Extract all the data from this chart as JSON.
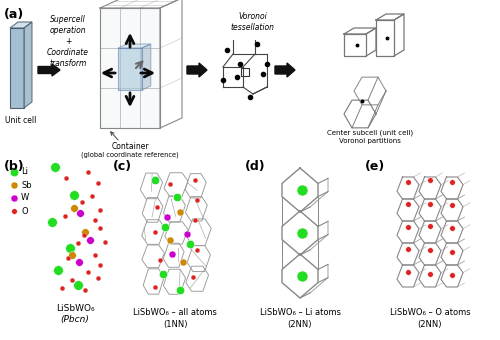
{
  "panel_a_label": "(a)",
  "panel_b_label": "(b)",
  "panel_c_label": "(c)",
  "panel_d_label": "(d)",
  "panel_e_label": "(e)",
  "unit_cell_text": "Unit cell",
  "supercell_text": "Supercell\noperation\n+\nCoordinate\ntransform",
  "voronoi_text": "Voronoi\ntessellation",
  "container_text": "Container\n(global coordinate reference)",
  "center_subcell_text": "Center subcell (unit cell)\nVoronoi partitions",
  "lisbwo6_label": "LiSbWO₆",
  "lisbwo6_spacegroup": "(Pbcn)",
  "label_Li": "Li",
  "label_Sb": "Sb",
  "label_W": "W",
  "label_O": "O",
  "color_Li": "#22dd22",
  "color_Sb": "#cc8800",
  "color_W": "#cc00cc",
  "color_O": "#dd2222",
  "caption_c": "LiSbWO₆ – all atoms\n(1NN)",
  "caption_d": "LiSbWO₆ – Li atoms\n(2NN)",
  "caption_e": "LiSbWO₆ – O atoms\n(2NN)",
  "bg_color": "#ffffff",
  "text_color": "#000000",
  "gray": "#888888",
  "darkgray": "#555555"
}
